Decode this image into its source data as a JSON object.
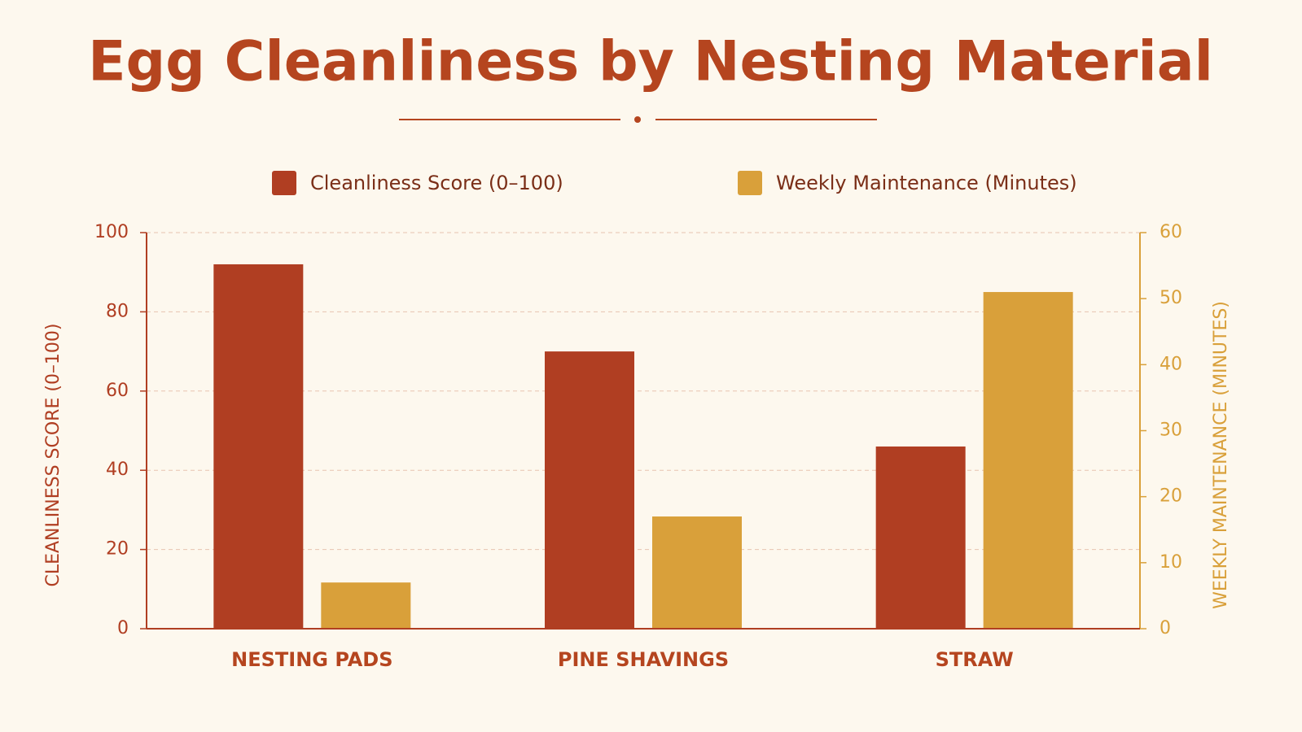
{
  "chart_data": {
    "type": "bar",
    "title": "Egg Cleanliness by Nesting Material",
    "categories": [
      "NESTING PADS",
      "PINE SHAVINGS",
      "STRAW"
    ],
    "series": [
      {
        "name": "Cleanliness Score (0–100)",
        "color": "#b03e22",
        "values": [
          92,
          70,
          46
        ]
      },
      {
        "name": "Weekly Maintenance (Minutes)",
        "color": "#d9a03a",
        "values": [
          7,
          17,
          51
        ],
        "axis": "y2"
      }
    ],
    "ylabel": "CLEANLINESS SCORE (0–100)",
    "y2label": "WEEKLY MAINTENANCE (MINUTES)",
    "ylim": [
      0,
      100
    ],
    "yticks": [
      0,
      20,
      40,
      60,
      80,
      100
    ],
    "y2lim": [
      0,
      60
    ],
    "y2ticks": [
      0,
      10,
      20,
      30,
      40,
      50,
      60
    ],
    "grid": true,
    "legend": "top"
  }
}
